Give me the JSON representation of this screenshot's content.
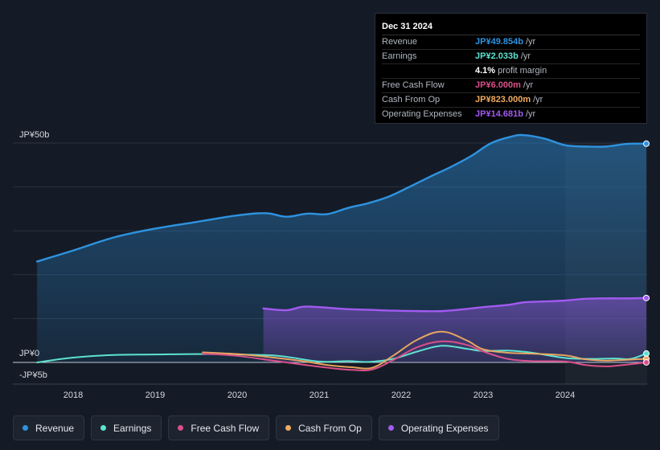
{
  "colors": {
    "revenue": "#2e93e0",
    "earnings": "#5ee3cf",
    "fcf": "#d9508a",
    "cfo": "#f0aa60",
    "opex": "#a25af0",
    "background": "#151b26",
    "grid": "#2a3140"
  },
  "tooltip": {
    "date": "Dec 31 2024",
    "rows": [
      {
        "label": "Revenue",
        "value": "JP¥49.854b",
        "unit": "/yr",
        "color": "#2e93e0"
      },
      {
        "label": "Earnings",
        "value": "JP¥2.033b",
        "unit": "/yr",
        "color": "#5ee3cf"
      },
      {
        "label": "",
        "value": "4.1%",
        "unit": "profit margin",
        "color": "#ffffff"
      },
      {
        "label": "Free Cash Flow",
        "value": "JP¥6.000m",
        "unit": "/yr",
        "color": "#d9508a"
      },
      {
        "label": "Cash From Op",
        "value": "JP¥823.000m",
        "unit": "/yr",
        "color": "#f0aa60"
      },
      {
        "label": "Operating Expenses",
        "value": "JP¥14.681b",
        "unit": "/yr",
        "color": "#a25af0"
      }
    ]
  },
  "legend": [
    {
      "label": "Revenue",
      "color": "#2e93e0"
    },
    {
      "label": "Earnings",
      "color": "#5ee3cf"
    },
    {
      "label": "Free Cash Flow",
      "color": "#d9508a"
    },
    {
      "label": "Cash From Op",
      "color": "#f0aa60"
    },
    {
      "label": "Operating Expenses",
      "color": "#a25af0"
    }
  ],
  "chart_data": {
    "type": "area",
    "title": "",
    "xlabel": "",
    "ylabel": "",
    "xlim": [
      2017.0,
      2025.0
    ],
    "ylim": [
      -5,
      50
    ],
    "y_tick_labels": [
      {
        "value": 50,
        "label": "JP¥50b"
      },
      {
        "value": 0,
        "label": "JP¥0"
      },
      {
        "value": -5,
        "label": "-JP¥5b"
      }
    ],
    "x_ticks": [
      {
        "value": 2018,
        "label": "2018"
      },
      {
        "value": 2019,
        "label": "2019"
      },
      {
        "value": 2020,
        "label": "2020"
      },
      {
        "value": 2021,
        "label": "2021"
      },
      {
        "value": 2022,
        "label": "2022"
      },
      {
        "value": 2023,
        "label": "2023"
      },
      {
        "value": 2024,
        "label": "2024"
      }
    ],
    "highlight_start": 2024.0,
    "series": [
      {
        "name": "Revenue",
        "key": "revenue",
        "fill": true,
        "x": [
          2017.56,
          2018.0,
          2018.5,
          2019.0,
          2019.5,
          2020.0,
          2020.35,
          2020.6,
          2020.85,
          2021.1,
          2021.35,
          2021.6,
          2021.85,
          2022.1,
          2022.35,
          2022.6,
          2022.85,
          2023.1,
          2023.35,
          2023.5,
          2023.75,
          2024.0,
          2024.25,
          2024.5,
          2024.75,
          2024.99
        ],
        "y": [
          23.0,
          25.5,
          28.5,
          30.5,
          32.0,
          33.5,
          34.0,
          33.2,
          33.9,
          33.8,
          35.2,
          36.3,
          37.8,
          40.0,
          42.3,
          44.5,
          47.0,
          50.0,
          51.5,
          51.8,
          51.0,
          49.5,
          49.2,
          49.2,
          49.8,
          49.854
        ]
      },
      {
        "name": "Operating Expenses",
        "key": "opex",
        "fill": true,
        "x": [
          2020.32,
          2020.6,
          2020.8,
          2021.0,
          2021.3,
          2021.6,
          2021.9,
          2022.2,
          2022.5,
          2022.8,
          2023.0,
          2023.3,
          2023.5,
          2023.75,
          2024.0,
          2024.25,
          2024.5,
          2024.75,
          2024.99
        ],
        "y": [
          12.3,
          11.9,
          12.7,
          12.6,
          12.2,
          12.0,
          11.8,
          11.7,
          11.7,
          12.2,
          12.6,
          13.1,
          13.7,
          13.9,
          14.1,
          14.5,
          14.6,
          14.6,
          14.681
        ]
      },
      {
        "name": "Earnings",
        "key": "earnings",
        "fill": false,
        "x": [
          2017.56,
          2018.0,
          2018.5,
          2019.0,
          2019.5,
          2020.0,
          2020.5,
          2021.0,
          2021.35,
          2021.6,
          2021.9,
          2022.2,
          2022.5,
          2022.8,
          2023.0,
          2023.3,
          2023.6,
          2024.0,
          2024.3,
          2024.6,
          2024.8,
          2024.99
        ],
        "y": [
          0.0,
          1.1,
          1.7,
          1.8,
          1.9,
          1.8,
          1.5,
          0.2,
          0.3,
          0.1,
          0.8,
          2.5,
          3.8,
          3.1,
          2.6,
          2.7,
          2.2,
          1.0,
          0.8,
          0.9,
          0.8,
          2.033
        ]
      },
      {
        "name": "Free Cash Flow",
        "key": "fcf",
        "fill": false,
        "x": [
          2019.58,
          2020.0,
          2020.4,
          2020.8,
          2021.1,
          2021.4,
          2021.65,
          2021.9,
          2022.2,
          2022.5,
          2022.8,
          2023.0,
          2023.3,
          2023.6,
          2024.0,
          2024.25,
          2024.5,
          2024.75,
          2024.99
        ],
        "y": [
          2.0,
          1.5,
          0.5,
          -0.5,
          -1.2,
          -1.7,
          -1.6,
          0.5,
          3.5,
          4.8,
          4.0,
          2.5,
          0.8,
          0.3,
          0.2,
          -0.6,
          -0.9,
          -0.5,
          0.006
        ]
      },
      {
        "name": "Cash From Op",
        "key": "cfo",
        "fill": false,
        "x": [
          2019.58,
          2020.0,
          2020.4,
          2020.8,
          2021.1,
          2021.4,
          2021.65,
          2021.9,
          2022.2,
          2022.5,
          2022.8,
          2023.0,
          2023.3,
          2023.6,
          2024.0,
          2024.25,
          2024.5,
          2024.75,
          2024.99
        ],
        "y": [
          2.3,
          1.9,
          1.2,
          0.3,
          -0.6,
          -1.1,
          -1.2,
          1.5,
          5.2,
          7.0,
          5.0,
          3.0,
          2.2,
          2.0,
          1.6,
          0.7,
          0.4,
          0.6,
          0.823
        ]
      }
    ]
  }
}
